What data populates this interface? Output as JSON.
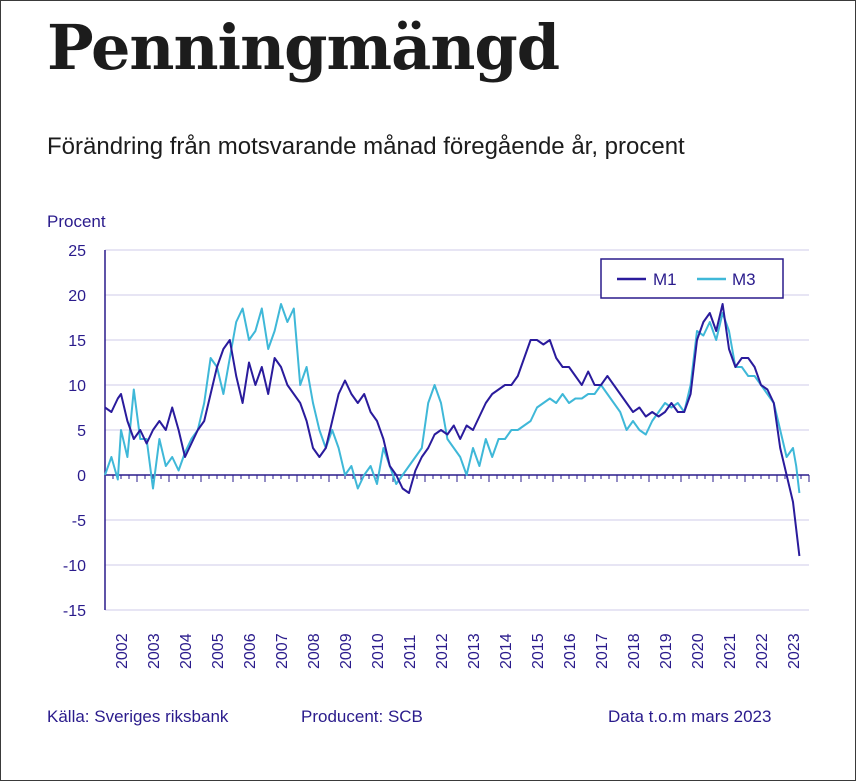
{
  "header": {
    "title": "Penningmängd",
    "subtitle": "Förändring från motsvarande månad föregående år, procent"
  },
  "footer": {
    "source": "Källa: Sveriges riksbank",
    "producer": "Producent: SCB",
    "data_note": "Data t.o.m mars 2023"
  },
  "colors": {
    "axis": "#2a1b8c",
    "grid": "#cfcbe8",
    "m1": "#2a1b9c",
    "m3": "#3fb8d8"
  },
  "chart_data": {
    "type": "line",
    "title": "Penningmängd",
    "ylabel": "Procent",
    "xlabel": "",
    "ylim": [
      -15,
      25
    ],
    "yticks": [
      25,
      20,
      15,
      10,
      5,
      0,
      -5,
      -10,
      -15
    ],
    "xlim": [
      2001.5,
      2023.5
    ],
    "xticks": [
      "2002",
      "2003",
      "2004",
      "2005",
      "2006",
      "2007",
      "2008",
      "2009",
      "2010",
      "2011",
      "2012",
      "2013",
      "2014",
      "2015",
      "2016",
      "2017",
      "2018",
      "2019",
      "2020",
      "2021",
      "2022",
      "2023"
    ],
    "grid": true,
    "legend_position": "top-right",
    "series": [
      {
        "name": "M1",
        "x": [
          2001.5,
          2001.7,
          2001.9,
          2002.0,
          2002.2,
          2002.4,
          2002.6,
          2002.8,
          2003.0,
          2003.2,
          2003.4,
          2003.6,
          2003.8,
          2004.0,
          2004.2,
          2004.4,
          2004.6,
          2004.8,
          2005.0,
          2005.2,
          2005.4,
          2005.6,
          2005.8,
          2006.0,
          2006.2,
          2006.4,
          2006.6,
          2006.8,
          2007.0,
          2007.2,
          2007.4,
          2007.6,
          2007.8,
          2008.0,
          2008.2,
          2008.4,
          2008.6,
          2008.8,
          2009.0,
          2009.2,
          2009.4,
          2009.6,
          2009.8,
          2010.0,
          2010.2,
          2010.4,
          2010.6,
          2010.8,
          2011.0,
          2011.2,
          2011.4,
          2011.6,
          2011.8,
          2012.0,
          2012.2,
          2012.4,
          2012.6,
          2012.8,
          2013.0,
          2013.2,
          2013.4,
          2013.6,
          2013.8,
          2014.0,
          2014.2,
          2014.4,
          2014.6,
          2014.8,
          2015.0,
          2015.2,
          2015.4,
          2015.6,
          2015.8,
          2016.0,
          2016.2,
          2016.4,
          2016.6,
          2016.8,
          2017.0,
          2017.2,
          2017.4,
          2017.6,
          2017.8,
          2018.0,
          2018.2,
          2018.4,
          2018.6,
          2018.8,
          2019.0,
          2019.2,
          2019.4,
          2019.6,
          2019.8,
          2020.0,
          2020.2,
          2020.4,
          2020.6,
          2020.8,
          2021.0,
          2021.2,
          2021.4,
          2021.6,
          2021.8,
          2022.0,
          2022.2,
          2022.4,
          2022.6,
          2022.8,
          2023.0,
          2023.1,
          2023.2
        ],
        "values": [
          7.5,
          7,
          8.5,
          9,
          6,
          4,
          5,
          3.5,
          5,
          6,
          5,
          7.5,
          5,
          2,
          3.5,
          5,
          6,
          9,
          12,
          14,
          15,
          11,
          8,
          12.5,
          10,
          12,
          9,
          13,
          12,
          10,
          9,
          8,
          6,
          3,
          2,
          3,
          6,
          9,
          10.5,
          9,
          8,
          9,
          7,
          6,
          4,
          1,
          0,
          -1.5,
          -2,
          0.5,
          2,
          3,
          4.5,
          5,
          4.5,
          5.5,
          4,
          5.5,
          5,
          6.5,
          8,
          9,
          9.5,
          10,
          10,
          11,
          13,
          15,
          15,
          14.5,
          15,
          13,
          12,
          12,
          11,
          10,
          11.5,
          10,
          10,
          11,
          10,
          9,
          8,
          7,
          7.5,
          6.5,
          7,
          6.5,
          7,
          8,
          7,
          7,
          9,
          15,
          17,
          18,
          16,
          19,
          14,
          12,
          13,
          13,
          12,
          10,
          9.5,
          8,
          3,
          0,
          -3,
          -6,
          -9
        ]
      },
      {
        "name": "M3",
        "x": [
          2001.5,
          2001.7,
          2001.9,
          2002.0,
          2002.2,
          2002.4,
          2002.6,
          2002.8,
          2003.0,
          2003.2,
          2003.4,
          2003.6,
          2003.8,
          2004.0,
          2004.2,
          2004.4,
          2004.6,
          2004.8,
          2005.0,
          2005.2,
          2005.4,
          2005.6,
          2005.8,
          2006.0,
          2006.2,
          2006.4,
          2006.6,
          2006.8,
          2007.0,
          2007.2,
          2007.4,
          2007.6,
          2007.8,
          2008.0,
          2008.2,
          2008.4,
          2008.6,
          2008.8,
          2009.0,
          2009.2,
          2009.4,
          2009.6,
          2009.8,
          2010.0,
          2010.2,
          2010.4,
          2010.6,
          2010.8,
          2011.0,
          2011.2,
          2011.4,
          2011.6,
          2011.8,
          2012.0,
          2012.2,
          2012.4,
          2012.6,
          2012.8,
          2013.0,
          2013.2,
          2013.4,
          2013.6,
          2013.8,
          2014.0,
          2014.2,
          2014.4,
          2014.6,
          2014.8,
          2015.0,
          2015.2,
          2015.4,
          2015.6,
          2015.8,
          2016.0,
          2016.2,
          2016.4,
          2016.6,
          2016.8,
          2017.0,
          2017.2,
          2017.4,
          2017.6,
          2017.8,
          2018.0,
          2018.2,
          2018.4,
          2018.6,
          2018.8,
          2019.0,
          2019.2,
          2019.4,
          2019.6,
          2019.8,
          2020.0,
          2020.2,
          2020.4,
          2020.6,
          2020.8,
          2021.0,
          2021.2,
          2021.4,
          2021.6,
          2021.8,
          2022.0,
          2022.2,
          2022.4,
          2022.6,
          2022.8,
          2023.0,
          2023.1,
          2023.2
        ],
        "values": [
          0,
          2,
          -0.5,
          5,
          2,
          9.5,
          4,
          4,
          -1.5,
          4,
          1,
          2,
          0.5,
          2.5,
          4,
          5,
          8,
          13,
          12,
          9,
          13,
          17,
          18.5,
          15,
          16,
          18.5,
          14,
          16,
          19,
          17,
          18.5,
          10,
          12,
          8,
          5,
          3,
          5,
          3,
          0,
          1,
          -1.5,
          0,
          1,
          -1,
          3,
          1,
          -1,
          0,
          1,
          2,
          3,
          8,
          10,
          8,
          4,
          3,
          2,
          0,
          3,
          1,
          4,
          2,
          4,
          4,
          5,
          5,
          5.5,
          6,
          7.5,
          8,
          8.5,
          8,
          9,
          8,
          8.5,
          8.5,
          9,
          9,
          10,
          9,
          8,
          7,
          5,
          6,
          5,
          4.5,
          6,
          7,
          8,
          7.5,
          8,
          7,
          10,
          16,
          15.5,
          17,
          15,
          18,
          16,
          12,
          12,
          11,
          11,
          10,
          9,
          8,
          5,
          2,
          3,
          1,
          -2
        ]
      }
    ]
  }
}
